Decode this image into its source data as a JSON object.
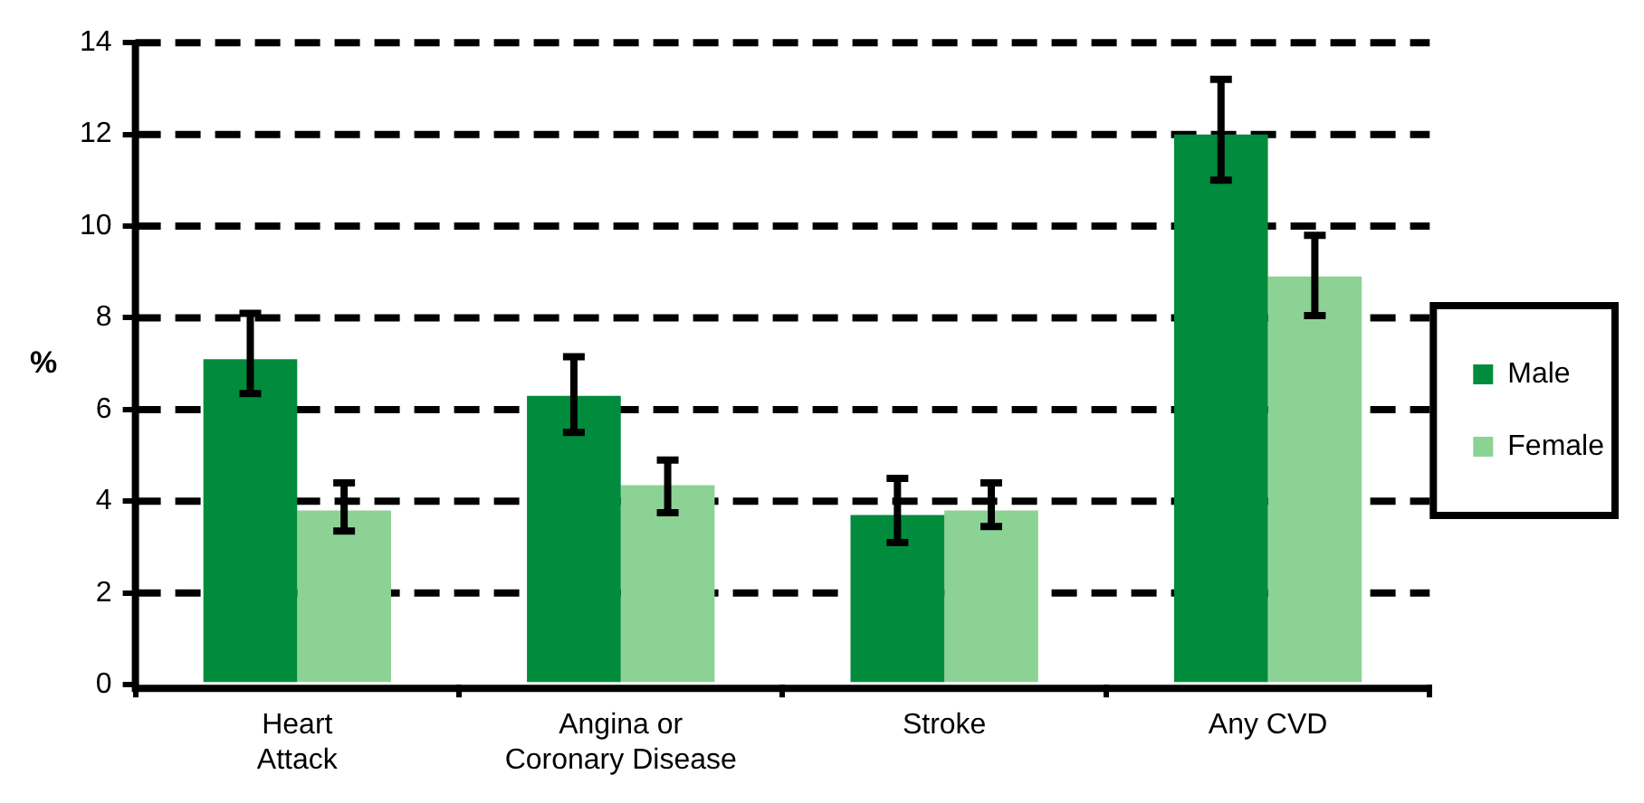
{
  "chart_data": {
    "type": "bar",
    "ylabel": "%",
    "categories": [
      "Heart Attack",
      "Angina or Coronary Disease",
      "Stroke",
      "Any CVD"
    ],
    "series": [
      {
        "name": "Male",
        "color": "#008c3c",
        "values": [
          7.1,
          6.3,
          3.7,
          12.0
        ],
        "errors": [
          [
            6.35,
            8.1
          ],
          [
            5.5,
            7.15
          ],
          [
            3.1,
            4.5
          ],
          [
            11.0,
            13.2
          ]
        ]
      },
      {
        "name": "Female",
        "color": "#8dd295",
        "values": [
          3.8,
          4.35,
          3.8,
          8.9
        ],
        "errors": [
          [
            3.35,
            4.4
          ],
          [
            3.75,
            4.9
          ],
          [
            3.45,
            4.4
          ],
          [
            8.05,
            9.8
          ]
        ]
      }
    ],
    "ylim": [
      0,
      14
    ],
    "yticks": [
      0,
      2,
      4,
      6,
      8,
      10,
      12,
      14
    ],
    "grid": "y",
    "legend": "right"
  }
}
